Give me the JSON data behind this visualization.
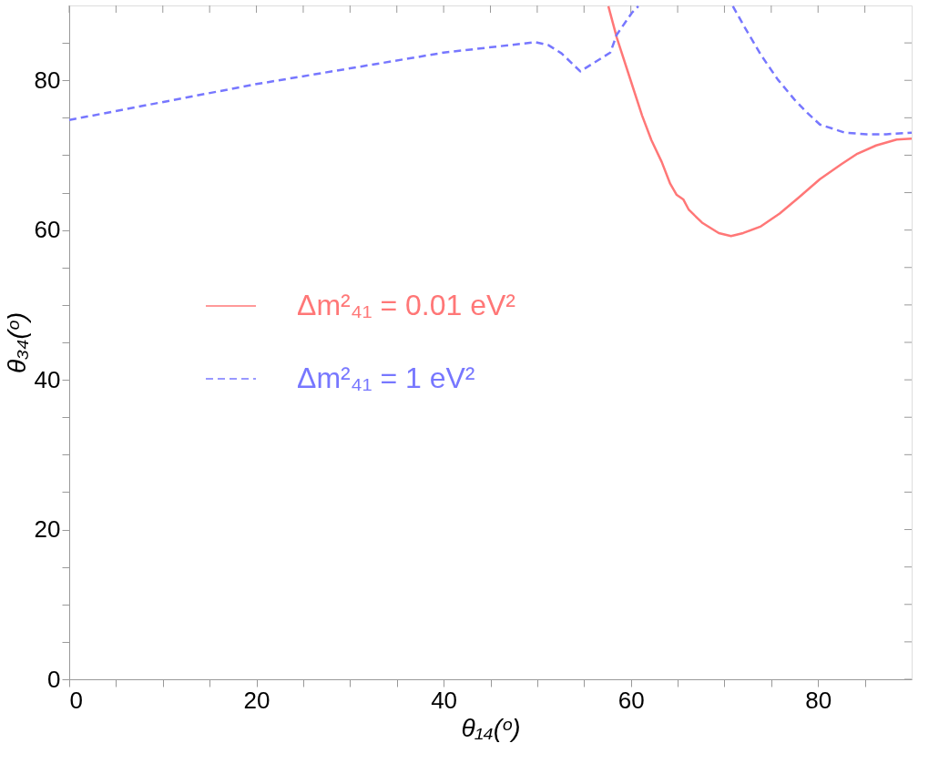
{
  "chart_data": {
    "type": "line",
    "xlabel": "θ₁₄(ᵒ)",
    "ylabel": "θ₃₄(ᵒ)",
    "xlim": [
      0,
      90
    ],
    "ylim": [
      0,
      90
    ],
    "xticks": [
      0,
      {
        "value": 5,
        "label": null
      },
      {
        "value": 10,
        "label": null
      },
      {
        "value": 15,
        "label": null
      },
      20,
      {
        "value": 25,
        "label": null
      },
      {
        "value": 30,
        "label": null
      },
      {
        "value": 35,
        "label": null
      },
      40,
      {
        "value": 45,
        "label": null
      },
      {
        "value": 50,
        "label": null
      },
      {
        "value": 55,
        "label": null
      },
      60,
      {
        "value": 65,
        "label": null
      },
      {
        "value": 70,
        "label": null
      },
      {
        "value": 75,
        "label": null
      },
      80,
      {
        "value": 85,
        "label": null
      }
    ],
    "yticks": [
      0,
      {
        "value": 5,
        "label": null
      },
      {
        "value": 10,
        "label": null
      },
      {
        "value": 15,
        "label": null
      },
      20,
      {
        "value": 25,
        "label": null
      },
      {
        "value": 30,
        "label": null
      },
      {
        "value": 35,
        "label": null
      },
      40,
      {
        "value": 45,
        "label": null
      },
      {
        "value": 50,
        "label": null
      },
      {
        "value": 55,
        "label": null
      },
      60,
      {
        "value": 65,
        "label": null
      },
      {
        "value": 70,
        "label": null
      },
      {
        "value": 75,
        "label": null
      },
      80,
      {
        "value": 85,
        "label": null
      }
    ],
    "grid": false,
    "legend": "left",
    "marker": "none",
    "series": [
      {
        "name": "Δm²₄₁ = 0.01 eV²",
        "color": "#ff7777",
        "line_style": "solid",
        "x": [
          57.6,
          58.5,
          59.9,
          61.2,
          62.2,
          63.3,
          64.2,
          64.9,
          65.6,
          66.2,
          67.6,
          69.4,
          70.7,
          72.0,
          73.9,
          75.9,
          77.9,
          80.2,
          82.5,
          84.2,
          86.2,
          88.4,
          90
        ],
        "values": [
          89.9,
          85.7,
          80.3,
          75.3,
          72.0,
          69.1,
          66.2,
          64.7,
          64.1,
          62.7,
          61.0,
          59.6,
          59.2,
          59.6,
          60.5,
          62.2,
          64.3,
          66.8,
          68.8,
          70.2,
          71.3,
          72.1,
          72.2
        ]
      },
      {
        "name": "Δm²₄₁ = 1 eV²",
        "color": "#7777ff",
        "line_style": "dashed",
        "x": [
          0,
          20,
          40,
          49.8,
          51.2,
          52.6,
          54.6,
          57.8,
          58.5,
          60.1,
          60.8,
          65,
          70.9,
          72.2,
          73.9,
          75.7,
          77.5,
          78.9,
          80.2,
          82.9,
          85.2,
          87.3,
          90
        ],
        "values": [
          74.7,
          79.5,
          83.7,
          85.1,
          84.7,
          83.6,
          81.2,
          83.7,
          86.1,
          89.0,
          89.9,
          null,
          89.9,
          87.0,
          83.4,
          80.1,
          77.4,
          75.6,
          74.1,
          73.0,
          72.8,
          72.8,
          73.0
        ]
      }
    ]
  }
}
